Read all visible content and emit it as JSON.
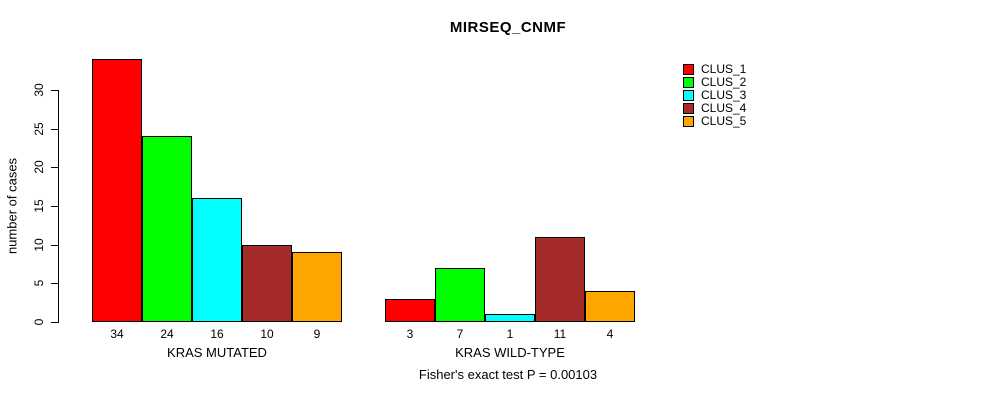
{
  "title": "MIRSEQ_CNMF",
  "y_axis": {
    "label": "number of cases",
    "ticks": [
      0,
      5,
      10,
      15,
      20,
      25,
      30
    ]
  },
  "footer": "Fisher's exact test P = 0.00103",
  "legend": {
    "items": [
      {
        "label": "CLUS_1",
        "color": "#FF0000"
      },
      {
        "label": "CLUS_2",
        "color": "#00FF00"
      },
      {
        "label": "CLUS_3",
        "color": "#00FFFF"
      },
      {
        "label": "CLUS_4",
        "color": "#A52A2A"
      },
      {
        "label": "CLUS_5",
        "color": "#FFA500"
      }
    ]
  },
  "chart_data": {
    "type": "bar",
    "title": "MIRSEQ_CNMF",
    "ylabel": "number of cases",
    "xlabel": "",
    "ylim": [
      0,
      34
    ],
    "yticks": [
      0,
      5,
      10,
      15,
      20,
      25,
      30
    ],
    "grid": false,
    "legend_position": "right-inside-top",
    "series_names": [
      "CLUS_1",
      "CLUS_2",
      "CLUS_3",
      "CLUS_4",
      "CLUS_5"
    ],
    "series_colors": [
      "#FF0000",
      "#00FF00",
      "#00FFFF",
      "#A52A2A",
      "#FFA500"
    ],
    "categories": [
      "KRAS MUTATED",
      "KRAS WILD-TYPE"
    ],
    "groups": [
      {
        "label": "KRAS MUTATED",
        "values": [
          34,
          24,
          16,
          10,
          9
        ]
      },
      {
        "label": "KRAS WILD-TYPE",
        "values": [
          3,
          7,
          1,
          11,
          4
        ]
      }
    ],
    "bar_value_labels_shown": true,
    "annotation": "Fisher's exact test P = 0.00103"
  }
}
